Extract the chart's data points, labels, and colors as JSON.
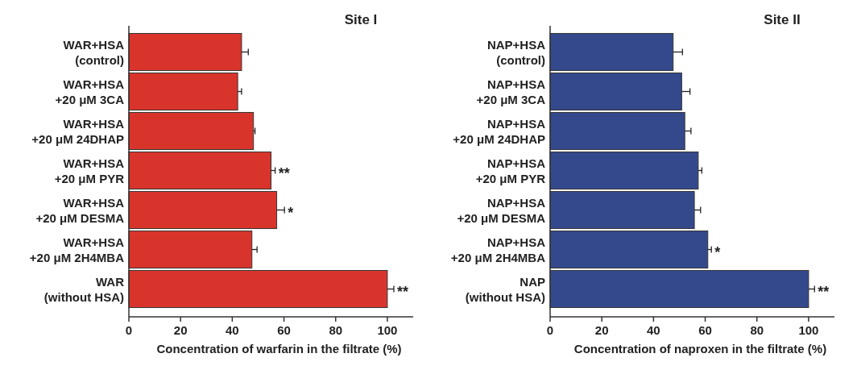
{
  "chart_data": [
    {
      "type": "bar",
      "orientation": "horizontal",
      "title": "Site I",
      "xlabel": "Concentration of warfarin in the filtrate (%)",
      "categories": [
        "WAR+HSA\n(control)",
        "WAR+HSA\n+20 μM 3CA",
        "WAR+HSA\n+20 μM 24DHAP",
        "WAR+HSA\n+20 μM PYR",
        "WAR+HSA\n+20 μM DESMA",
        "WAR+HSA\n+20 μM 2H4MBA",
        "WAR\n(without HSA)"
      ],
      "values": [
        43.6,
        42.1,
        48.2,
        55.0,
        57.2,
        47.6,
        100
      ],
      "errors": [
        2.6,
        1.5,
        0.6,
        1.6,
        3.0,
        2.0,
        2.5
      ],
      "color": "#d9342b",
      "xlim": [
        0,
        110
      ],
      "xticks": [
        0,
        20,
        40,
        60,
        80,
        100
      ],
      "grid": false,
      "annotations": [
        {
          "text": "**",
          "x": 55.0,
          "y": "WAR+HSA\n+20 μM PYR"
        },
        {
          "text": "*",
          "x": 57.2,
          "y": "WAR+HSA\n+20 μM DESMA"
        },
        {
          "text": "**",
          "x": 100,
          "y": "WAR\n(without HSA)"
        }
      ]
    },
    {
      "type": "bar",
      "orientation": "horizontal",
      "title": "Site II",
      "xlabel": "Concentration of naproxen in the filtrate (%)",
      "categories": [
        "NAP+HSA\n(control)",
        "NAP+HSA\n+20 μM 3CA",
        "NAP+HSA\n+20 μM 24DHAP",
        "NAP+HSA\n+20 μM PYR",
        "NAP+HSA\n+20 μM DESMA",
        "NAP+HSA\n+20 μM 2H4MBA",
        "NAP\n(without HSA)"
      ],
      "values": [
        47.6,
        50.9,
        52.1,
        57.3,
        55.8,
        61.0,
        100
      ],
      "errors": [
        3.6,
        3.2,
        2.4,
        1.4,
        2.4,
        1.4,
        2.3
      ],
      "color": "#34498c",
      "xlim": [
        0,
        110
      ],
      "xticks": [
        0,
        20,
        40,
        60,
        80,
        100
      ],
      "grid": false,
      "annotations": [
        {
          "text": "*",
          "x": 61.0,
          "y": "NAP+HSA\n+20 μM 2H4MBA"
        },
        {
          "text": "**",
          "x": 100,
          "y": "NAP\n(without HSA)"
        }
      ]
    }
  ]
}
